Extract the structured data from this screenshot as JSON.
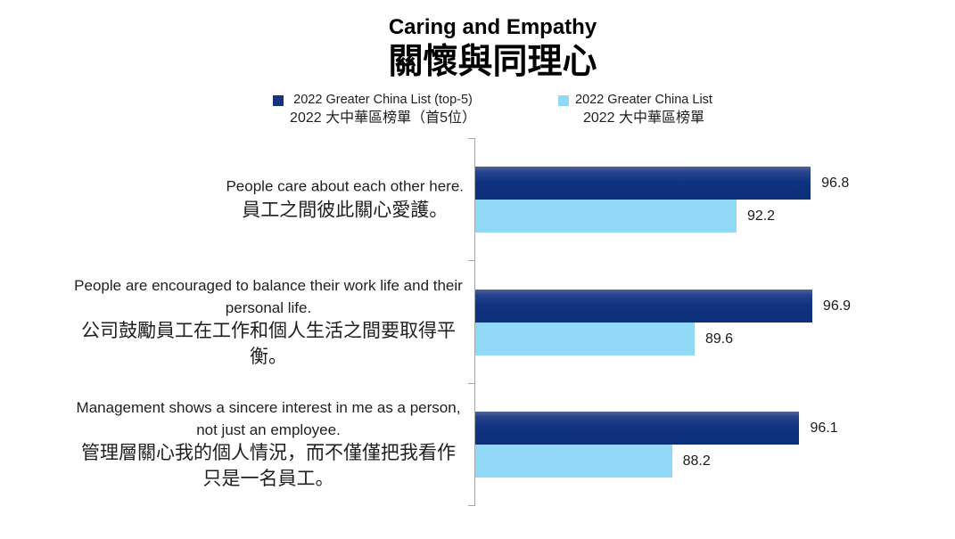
{
  "title": {
    "en": "Caring and Empathy",
    "zh": "關懷與同理心"
  },
  "legend": {
    "items": [
      {
        "label_en": "2022 Greater China List (top-5)",
        "label_zh": "2022 大中華區榜單（首5位）",
        "color": "#15337B"
      },
      {
        "label_en": "2022 Greater China List",
        "label_zh": "2022 大中華區榜單",
        "color": "#92D9F8"
      }
    ]
  },
  "chart_data": {
    "type": "bar",
    "orientation": "horizontal",
    "title": "Caring and Empathy 關懷與同理心",
    "xlabel": "",
    "ylabel": "",
    "xlim": [
      76,
      100
    ],
    "grid": false,
    "legend_position": "top",
    "data_labels": "outside-end",
    "axis_color": "#A6A6A6",
    "categories": [
      "People care about each other here. 員工之間彼此關心愛護。",
      "People are encouraged to balance their work life and their personal life. 公司鼓勵員工在工作和個人生活之間要取得平衡。",
      "Management shows a sincere interest in me as a person, not just an employee. 管理層關心我的個人情況，而不僅僅把我看作只是一名員工。"
    ],
    "series": [
      {
        "name": "2022 Greater China List (top-5) 2022 大中華區榜單（首5位）",
        "color": "#15337B",
        "values": [
          96.8,
          96.9,
          96.1
        ]
      },
      {
        "name": "2022 Greater China List 2022 大中華區榜單",
        "color": "#92D9F8",
        "values": [
          92.2,
          89.6,
          88.2
        ]
      }
    ],
    "groups": [
      {
        "label_en": "People care about each other here.",
        "label_zh": "員工之間彼此關心愛護。",
        "values": [
          96.8,
          92.2
        ]
      },
      {
        "label_en": "People are encouraged to balance their work life and their personal life.",
        "label_zh": "公司鼓勵員工在工作和個人生活之間要取得平衡。",
        "values": [
          96.9,
          89.6
        ]
      },
      {
        "label_en": "Management shows a sincere interest in me as a person, not just an employee.",
        "label_zh": "管理層關心我的個人情況，而不僅僅把我看作只是一名員工。",
        "values": [
          96.1,
          88.2
        ]
      }
    ]
  }
}
